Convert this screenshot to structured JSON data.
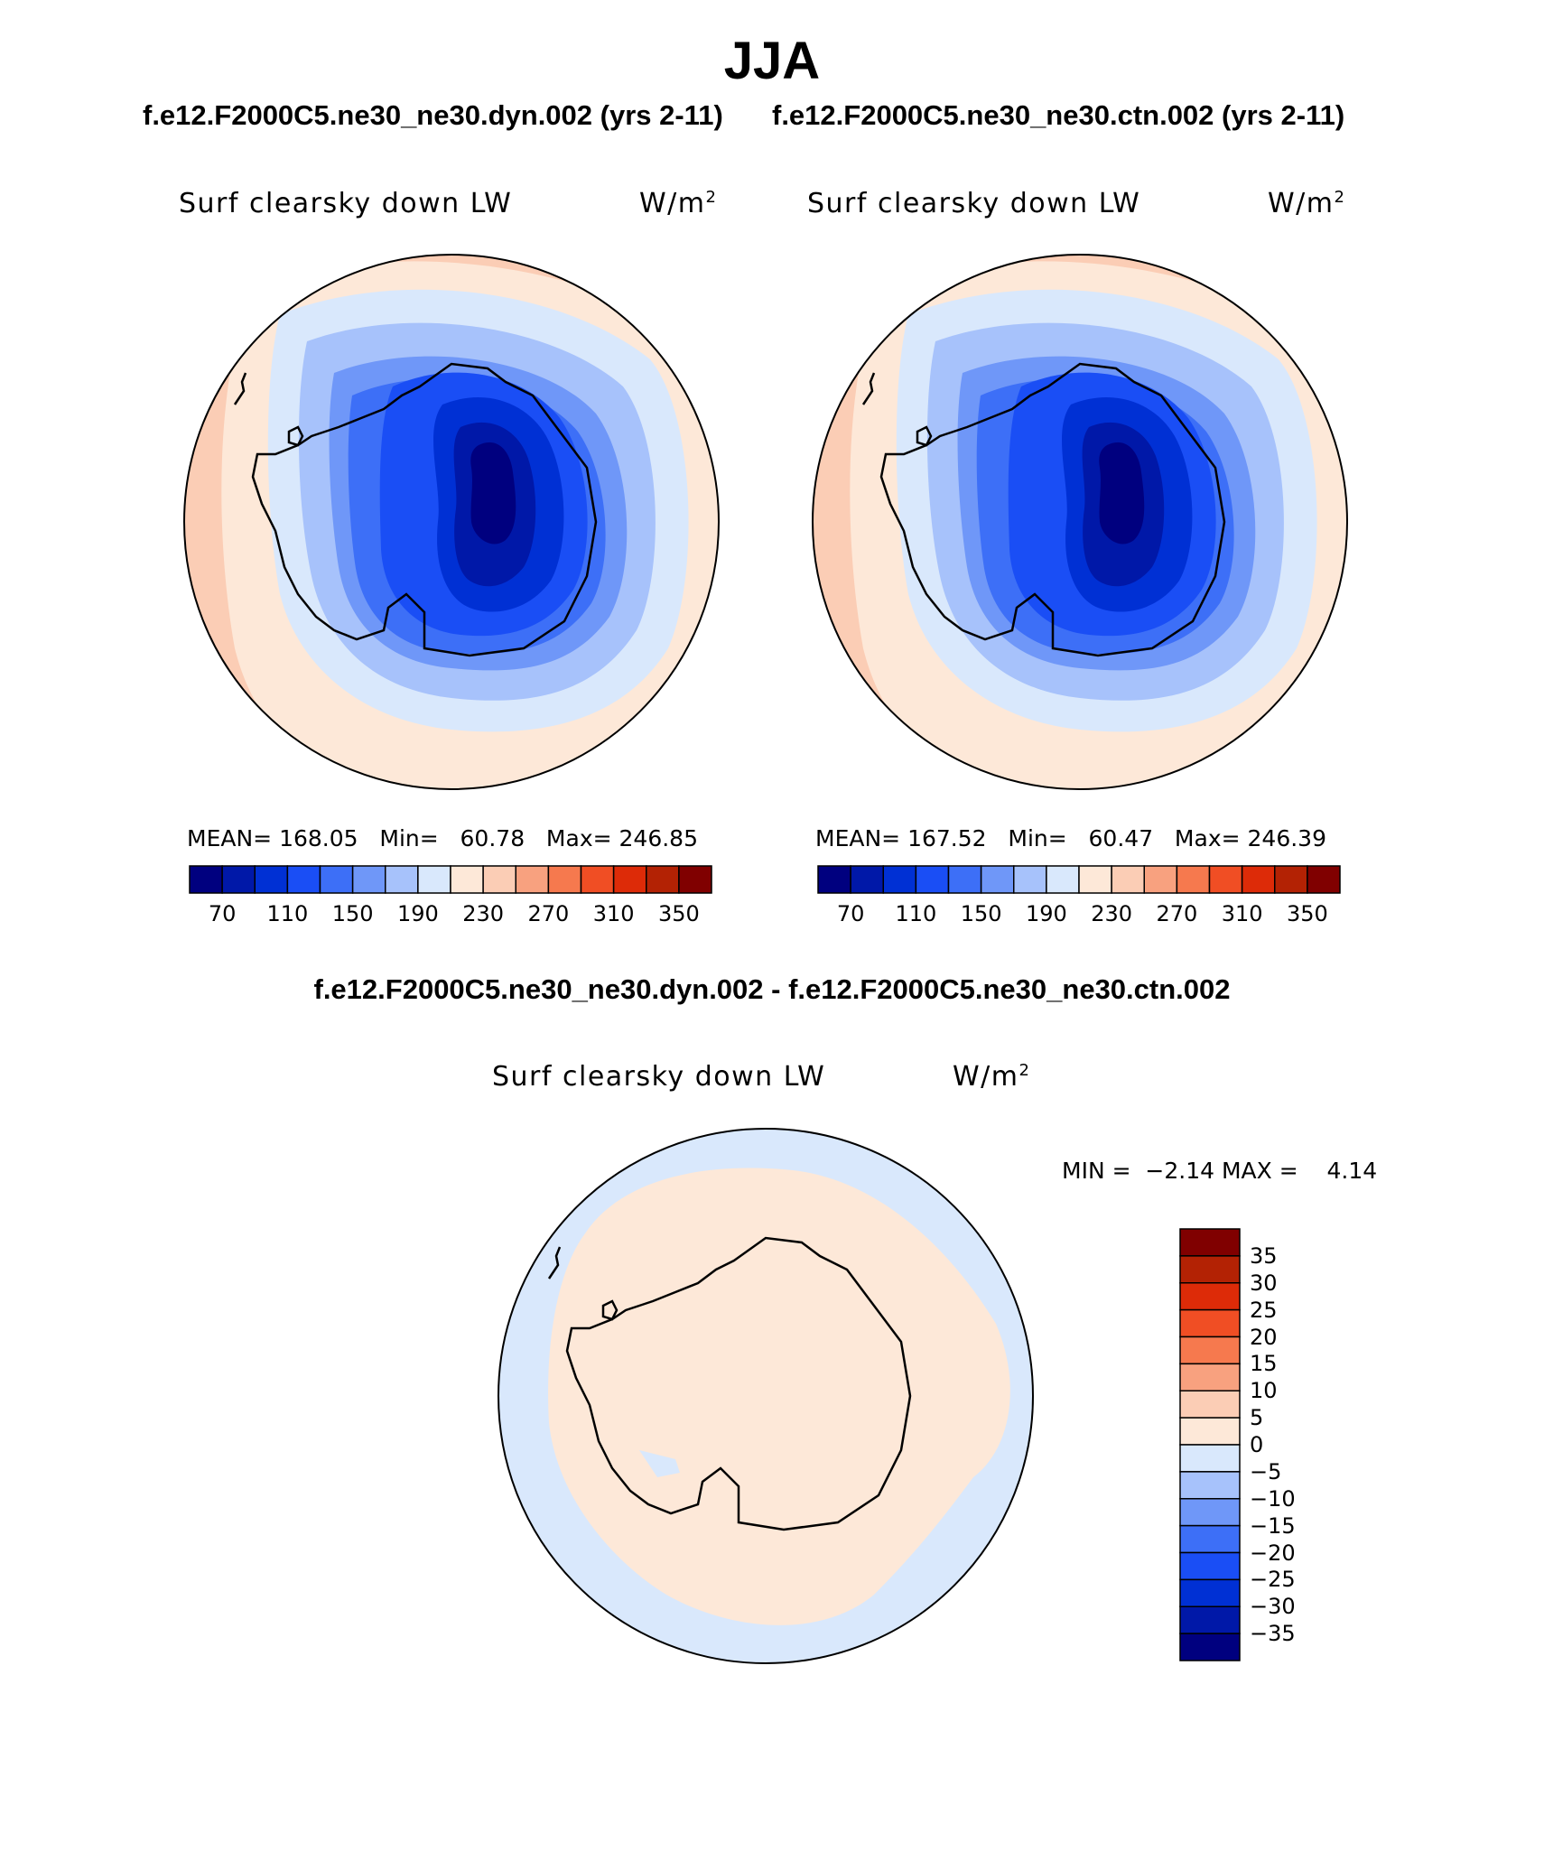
{
  "figure": {
    "season": "JJA",
    "case1_title": "f.e12.F2000C5.ne30_ne30.dyn.002 (yrs 2-11)",
    "case2_title": "f.e12.F2000C5.ne30_ne30.ctn.002 (yrs 2-11)",
    "diff_title": "f.e12.F2000C5.ne30_ne30.dyn.002 - f.e12.F2000C5.ne30_ne30.ctn.002"
  },
  "panels": [
    {
      "variable": "Surf clearsky down LW",
      "units_base": "W/m",
      "units_exp": "2",
      "stats": "MEAN= 168.05   Min=   60.78   Max= 246.85"
    },
    {
      "variable": "Surf clearsky down LW",
      "units_base": "W/m",
      "units_exp": "2",
      "stats": "MEAN= 167.52   Min=   60.47   Max= 246.39"
    },
    {
      "variable": "Surf clearsky down LW",
      "units_base": "W/m",
      "units_exp": "2",
      "stats": "MIN =  −2.14 MAX =    4.14"
    }
  ],
  "colorbars": {
    "main": {
      "colors": [
        "#00007f",
        "#0018a8",
        "#0030d4",
        "#1a4ef5",
        "#3d6ff7",
        "#6f97f8",
        "#a7c2fb",
        "#d9e8fc",
        "#fde8d8",
        "#fbcdb5",
        "#f8a17f",
        "#f6794e",
        "#f04e24",
        "#dd2b08",
        "#b32204",
        "#800000"
      ],
      "labels": [
        "70",
        "110",
        "150",
        "190",
        "230",
        "270",
        "310",
        "350"
      ]
    },
    "diff": {
      "colors": [
        "#800000",
        "#b32204",
        "#dd2b08",
        "#f04e24",
        "#f6794e",
        "#f8a17f",
        "#fbcdb5",
        "#fde8d8",
        "#d9e8fc",
        "#a7c2fb",
        "#6f97f8",
        "#3d6ff7",
        "#1a4ef5",
        "#0030d4",
        "#0018a8",
        "#00007f"
      ],
      "labels": [
        "35",
        "30",
        "25",
        "20",
        "15",
        "10",
        "5",
        "0",
        "−5",
        "−10",
        "−15",
        "−20",
        "−25",
        "−30",
        "−35"
      ]
    }
  }
}
